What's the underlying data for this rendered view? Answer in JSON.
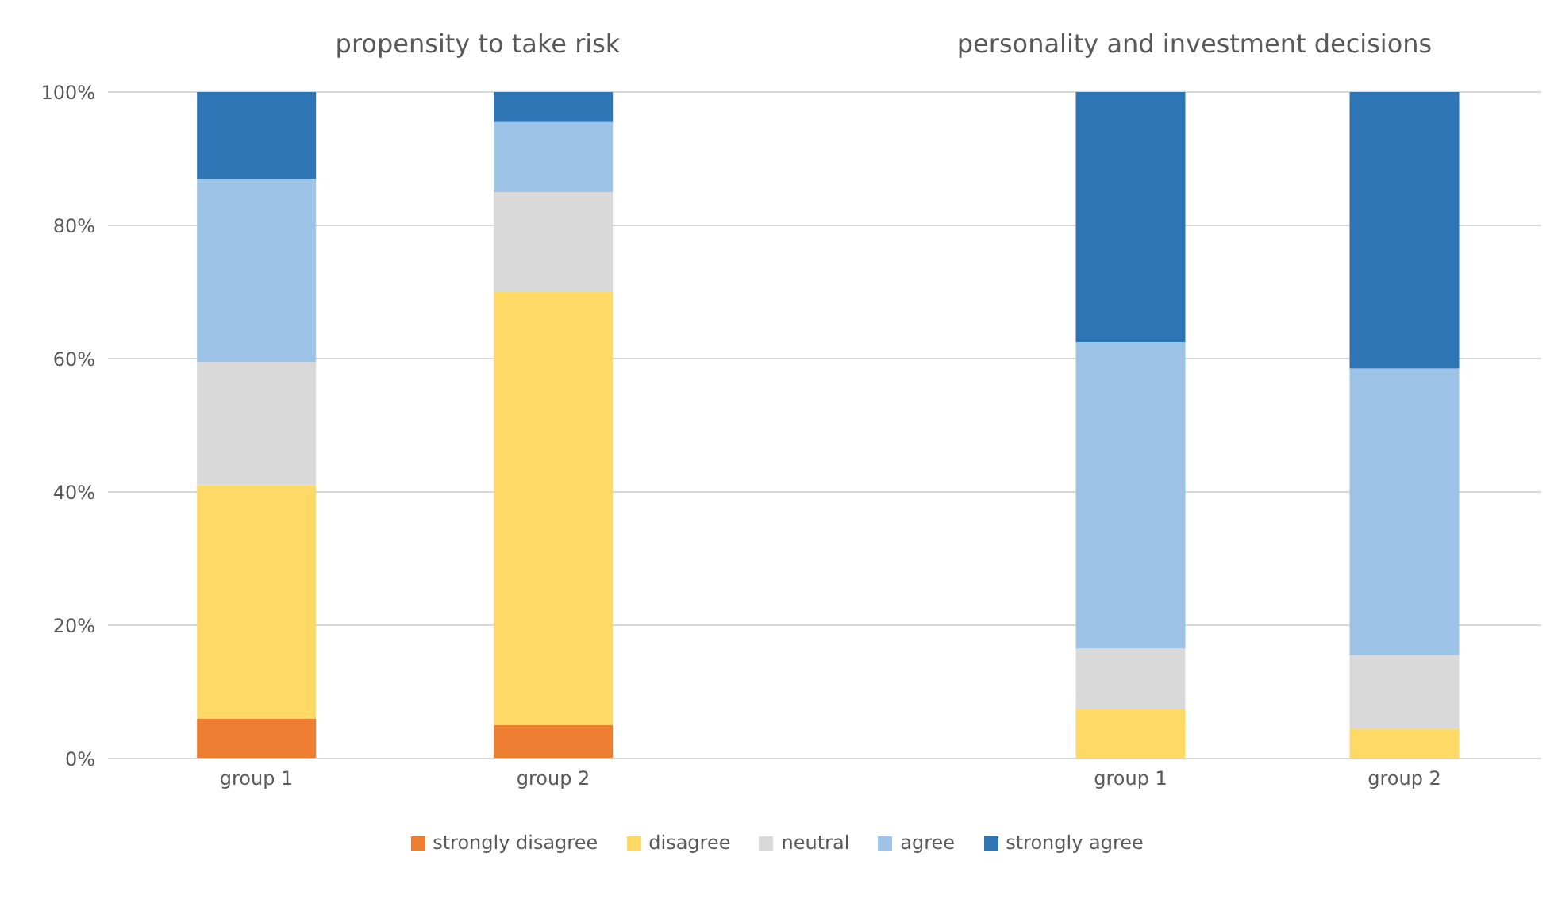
{
  "chart_data": [
    {
      "type": "bar",
      "title": "propensity to take risk",
      "categories": [
        "group 1",
        "group 2"
      ],
      "stacked": true,
      "ylim": [
        0,
        100
      ],
      "yticks": [
        {
          "value": 0,
          "label": "0%"
        },
        {
          "value": 20,
          "label": "20%"
        },
        {
          "value": 40,
          "label": "40%"
        },
        {
          "value": 60,
          "label": "60%"
        },
        {
          "value": 80,
          "label": "80%"
        },
        {
          "value": 100,
          "label": "100%"
        }
      ],
      "grid": "y",
      "legend": "bottom",
      "series": [
        {
          "name": "strongly disagree",
          "color": "#ed7d31",
          "values": [
            6,
            5
          ]
        },
        {
          "name": "disagree",
          "color": "#ffd966",
          "values": [
            35,
            65
          ]
        },
        {
          "name": "neutral",
          "color": "#d9d9d9",
          "values": [
            18.5,
            15
          ]
        },
        {
          "name": "agree",
          "color": "#9dc3e6",
          "values": [
            27.5,
            10.5
          ]
        },
        {
          "name": "strongly agree",
          "color": "#2e75b6",
          "values": [
            13,
            4.5
          ]
        }
      ]
    },
    {
      "type": "bar",
      "title": "personality and investment decisions",
      "categories": [
        "group 1",
        "group 2"
      ],
      "stacked": true,
      "ylim": [
        0,
        100
      ],
      "yticks": [
        0,
        20,
        40,
        60,
        80,
        100
      ],
      "tick_labels": "x",
      "grid": "y",
      "series": [
        {
          "name": "strongly disagree",
          "color": "#ed7d31",
          "values": [
            0,
            0
          ]
        },
        {
          "name": "disagree",
          "color": "#ffd966",
          "values": [
            7.5,
            4.5
          ]
        },
        {
          "name": "neutral",
          "color": "#d9d9d9",
          "values": [
            9,
            11
          ]
        },
        {
          "name": "agree",
          "color": "#9dc3e6",
          "values": [
            46,
            43
          ]
        },
        {
          "name": "strongly agree",
          "color": "#2e75b6",
          "values": [
            37.5,
            41.5
          ]
        }
      ]
    }
  ]
}
